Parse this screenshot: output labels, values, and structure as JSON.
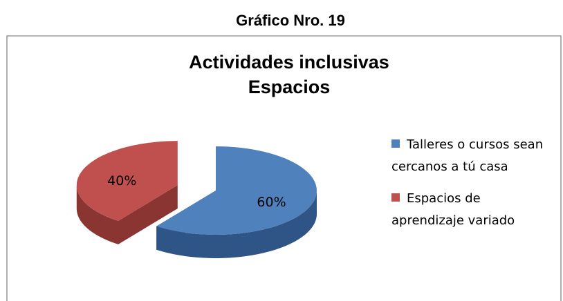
{
  "heading": "Gráfico Nro. 19",
  "chart_data": {
    "type": "pie3d",
    "title": [
      "Actividades inclusivas",
      "Espacios"
    ],
    "categories": [
      "Talleres o cursos sean cercanos a tú casa",
      "Espacios de aprendizaje variado"
    ],
    "values": [
      60,
      40
    ],
    "value_labels": [
      "60%",
      "40%"
    ],
    "colors": [
      "#4f81bd",
      "#c0504d"
    ],
    "side_colors": [
      "#2f5586",
      "#8b3532"
    ],
    "exploded": [
      false,
      true
    ],
    "legend": "right"
  }
}
